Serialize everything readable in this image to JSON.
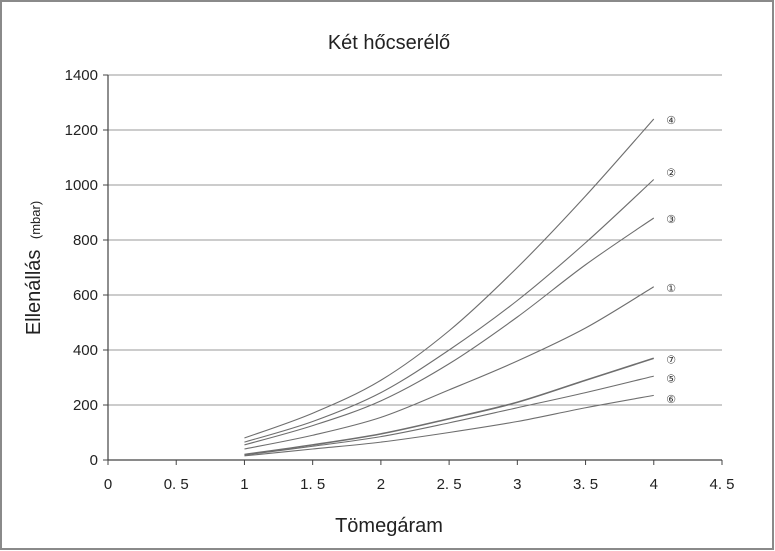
{
  "chart_data": {
    "type": "line",
    "title": "Két hőcserélő",
    "xlabel": "Tömegáram",
    "ylabel": "Ellenállás",
    "ylabel_unit": "(mbar)",
    "xlim": [
      0,
      4.5
    ],
    "ylim": [
      0,
      1400
    ],
    "x_ticks": [
      0,
      0.5,
      1,
      1.5,
      2,
      2.5,
      3,
      3.5,
      4,
      4.5
    ],
    "x_tick_labels": [
      "0",
      "0. 5",
      "1",
      "1. 5",
      "2",
      "2. 5",
      "3",
      "3. 5",
      "4",
      "4. 5"
    ],
    "y_ticks": [
      0,
      200,
      400,
      600,
      800,
      1000,
      1200,
      1400
    ],
    "y_tick_labels": [
      "0",
      "200",
      "400",
      "600",
      "800",
      "1000",
      "1200",
      "1400"
    ],
    "grid": "horizontal",
    "series": [
      {
        "name": "④",
        "x": [
          1,
          1.5,
          2,
          2.5,
          3,
          3.5,
          4
        ],
        "y": [
          80,
          170,
          290,
          470,
          700,
          960,
          1240
        ],
        "label_y": 1240
      },
      {
        "name": "②",
        "x": [
          1,
          1.5,
          2,
          2.5,
          3,
          3.5,
          4
        ],
        "y": [
          65,
          140,
          245,
          400,
          580,
          790,
          1020
        ],
        "label_y": 1050
      },
      {
        "name": "③",
        "x": [
          1,
          1.5,
          2,
          2.5,
          3,
          3.5,
          4
        ],
        "y": [
          55,
          125,
          215,
          350,
          520,
          710,
          880
        ],
        "label_y": 880
      },
      {
        "name": "①",
        "x": [
          1,
          1.5,
          2,
          2.5,
          3,
          3.5,
          4
        ],
        "y": [
          40,
          90,
          155,
          255,
          360,
          480,
          630
        ],
        "label_y": 630
      },
      {
        "name": "⑦",
        "x": [
          1,
          1.5,
          2,
          2.5,
          3,
          3.5,
          4
        ],
        "y": [
          20,
          55,
          95,
          150,
          210,
          290,
          370
        ],
        "label_y": 370
      },
      {
        "name": "⑤",
        "x": [
          1,
          1.5,
          2,
          2.5,
          3,
          3.5,
          4
        ],
        "y": [
          18,
          50,
          85,
          135,
          190,
          245,
          305
        ],
        "label_y": 300
      },
      {
        "name": "⑥",
        "x": [
          1,
          1.5,
          2,
          2.5,
          3,
          3.5,
          4
        ],
        "y": [
          15,
          40,
          65,
          100,
          140,
          190,
          235
        ],
        "label_y": 225
      }
    ],
    "colors": {
      "line": "#6e6e6e",
      "grid": "#9a9a9a",
      "axis": "#444444",
      "text": "#222222"
    }
  }
}
